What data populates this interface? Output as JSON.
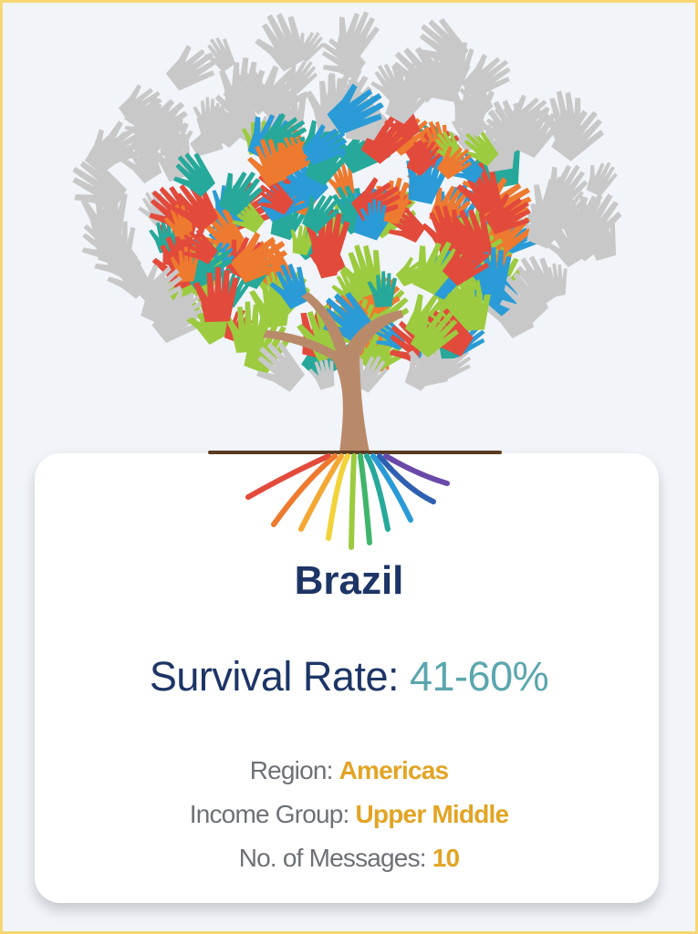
{
  "country": "Brazil",
  "survival": {
    "label": "Survival Rate:",
    "value": "41-60%"
  },
  "details": [
    {
      "label": "Region:",
      "value": "Americas"
    },
    {
      "label": "Income Group:",
      "value": "Upper Middle"
    },
    {
      "label": "No. of Messages:",
      "value": "10"
    }
  ],
  "colors": {
    "title": "#1d3566",
    "survival_value": "#5ba6ae",
    "detail_value": "#e2a424",
    "border": "#f7d774",
    "hand_palette": [
      "#e24a3b",
      "#ee7a2f",
      "#9ccb3f",
      "#2a9bd6",
      "#26a99a",
      "#c8c8c8"
    ]
  }
}
